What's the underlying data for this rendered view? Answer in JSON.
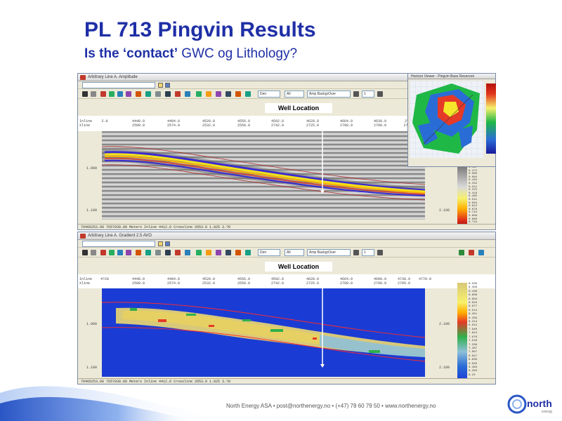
{
  "slide": {
    "title": "PL 713 Pingvin Results",
    "subtitle_bold": "Is the ‘contact’",
    "subtitle_rest": " GWC og Lithology?",
    "footer": "North Energy ASA  •  post@northenergy.no  •  (+47) 78 60 79 50  •  www.northenergy.no",
    "logo_text": "north",
    "logo_sub": "energy"
  },
  "top_window": {
    "title": "Arbitrary Line A. Amplitude",
    "well_label": "Well Location",
    "zoom_value": "1",
    "dropdown_a": "Den",
    "dropdown_b": "All",
    "dropdown_c": "Amp BackgrOver",
    "xlines": [
      "2.0",
      "4448.0",
      "4484.0",
      "4520.0",
      "4556.0",
      "4592.0",
      "4628.0",
      "4664.0",
      "4630.0",
      "2?"
    ],
    "inlines": [
      "2590.0",
      "2574.0",
      "2532.0",
      "2558.0",
      "2742.0",
      "2725.0",
      "2780.0",
      "2790.0",
      "279"
    ],
    "row_labels": [
      "Inline",
      "Xline"
    ],
    "y_labels": [
      "1.000",
      "1.100"
    ],
    "right_label": "2.100",
    "status": "79466253.00   7657030.00 Meters   Inline 4412.0   Crossline 2653.0   1.025   3.?0",
    "colorbar_labels": [
      "6.137",
      "6.4?2",
      "0.000",
      "0.084",
      "0.164",
      "0.232",
      "0.312",
      "0.375",
      "0.416",
      "0.460",
      "0.541",
      "0.594",
      "0.612",
      "0.676",
      "0.744",
      "0.808",
      "0.866",
      "0.744"
    ]
  },
  "bottom_window": {
    "title": "Arbitrary Line A. Gradient 2.5 AVO",
    "well_label": "Well Location",
    "zoom_value": "1",
    "dropdown_a": "Den",
    "dropdown_b": "All",
    "dropdown_c": "Amp BackgrOver",
    "xlines": [
      "4?20",
      "4448.0",
      "4484.0",
      "4520.0",
      "4556.0",
      "4592.0",
      "4628.0",
      "4664.0",
      "4690.0",
      "4730.0",
      "4770.0"
    ],
    "inlines": [
      "2590.0",
      "2574.0",
      "2532.0",
      "2558.0",
      "2742.0",
      "2725.0",
      "2780.0",
      "2790.0",
      "2795.0"
    ],
    "row_labels": [
      "Inline",
      "Xline"
    ],
    "y_labels": [
      "1.000",
      "1.100"
    ],
    "right_label": "2.100",
    "status": "79466253.00   7657030.00 Meters   Inline 4412.0   Crossline 2653.0   1.025   3.?0",
    "colorbar_labels": [
      "6.506",
      "6.306",
      "6.106",
      "6.906",
      "6.850",
      "6.810",
      "6.677",
      "6.514",
      "6.451",
      "6.339",
      "6.214",
      "6.012",
      "7.940",
      "7.813",
      "7.676",
      "7.528",
      "7.338",
      "7.287",
      "7.067",
      "6.927",
      "6.830",
      "6.640",
      "6.483",
      "6.263",
      "6.22"
    ]
  },
  "inset_window": {
    "title": "Horizon Viewer - Pingvin Base Reservoir"
  },
  "colors": {
    "title": "#1f2fa6",
    "accent_blue": "#2a56c6"
  }
}
